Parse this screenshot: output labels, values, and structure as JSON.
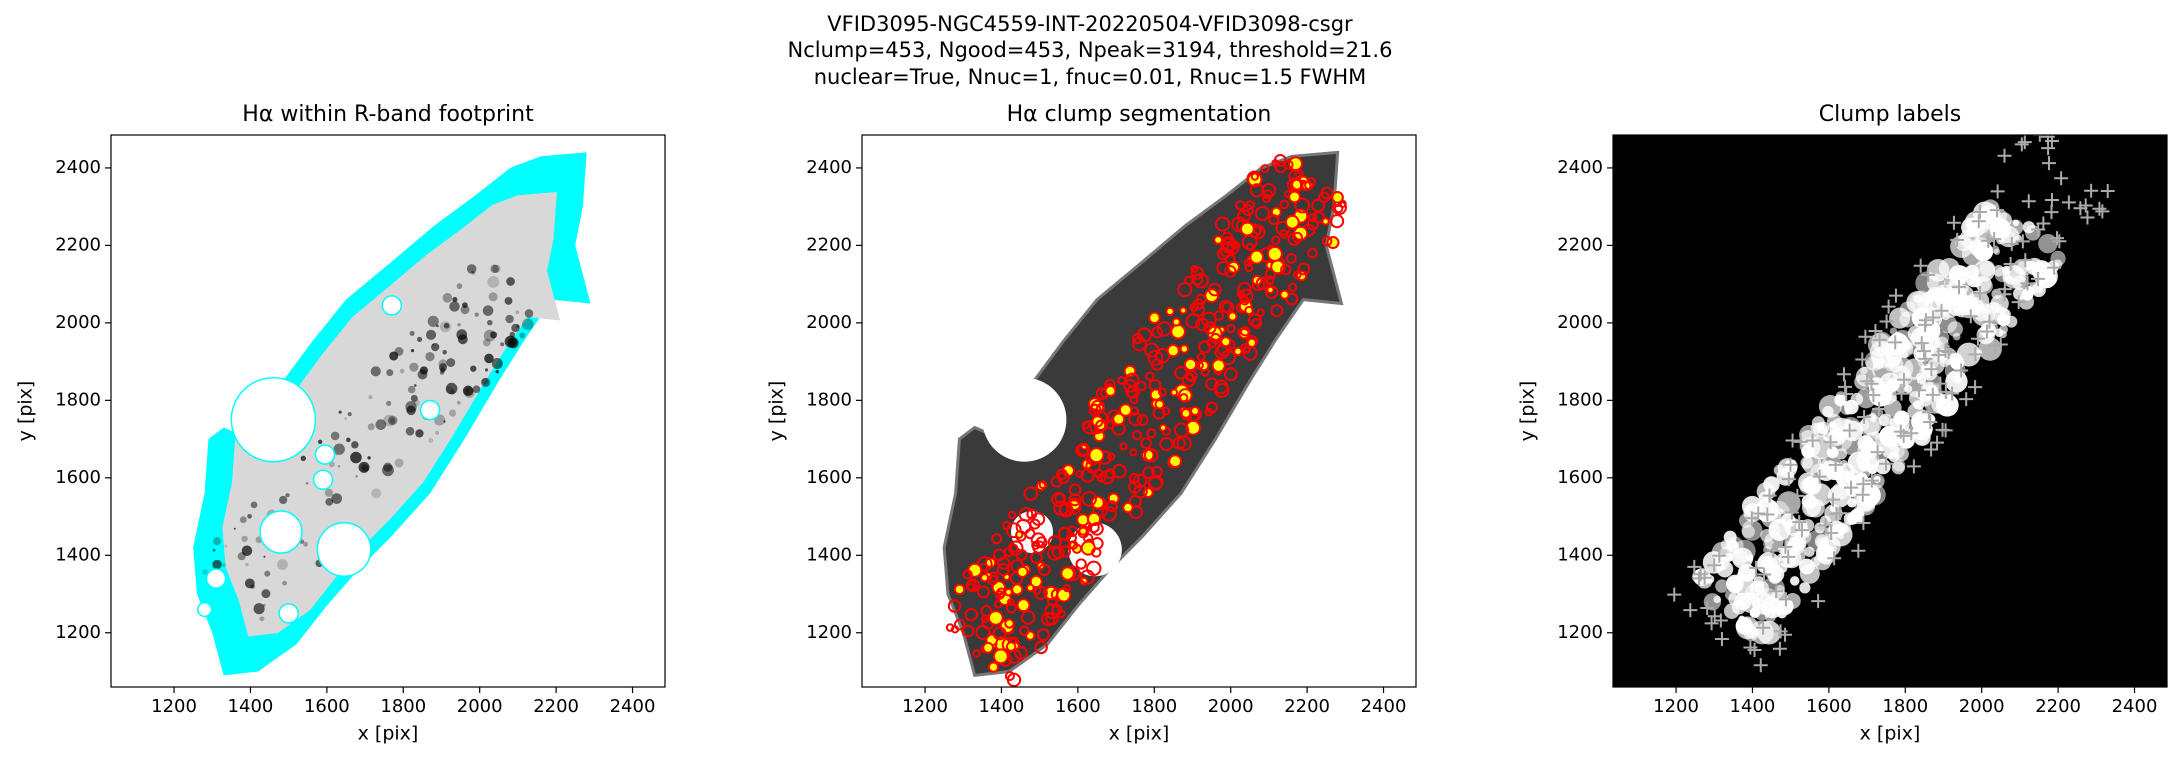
{
  "suptitle": [
    "VFID3095-NGC4559-INT-20220504-VFID3098-csgr",
    "Nclump=453, Ngood=453, Npeak=3194, threshold=21.6",
    "nuclear=True, Nnuc=1, fnuc=0.01, Rnuc=1.5 FWHM"
  ],
  "chart_data": [
    {
      "type": "image",
      "style": "footprint",
      "title": "Hα within R-band footprint",
      "xlabel": "x [pix]",
      "ylabel": "y [pix]",
      "xlim": [
        1035,
        2485
      ],
      "ylim": [
        1060,
        2485
      ],
      "xticks": [
        1200,
        1400,
        1600,
        1800,
        2000,
        2200,
        2400
      ],
      "yticks": [
        1200,
        1400,
        1600,
        1800,
        2000,
        2200,
        2400
      ]
    },
    {
      "type": "image",
      "style": "segmentation",
      "title": "Hα clump segmentation",
      "xlabel": "x [pix]",
      "ylabel": "y [pix]",
      "xlim": [
        1035,
        2485
      ],
      "ylim": [
        1060,
        2485
      ],
      "xticks": [
        1200,
        1400,
        1600,
        1800,
        2000,
        2200,
        2400
      ],
      "yticks": [
        1200,
        1400,
        1600,
        1800,
        2000,
        2200,
        2400
      ]
    },
    {
      "type": "image",
      "style": "labels",
      "title": "Clump labels",
      "xlabel": "x [pix]",
      "ylabel": "y [pix]",
      "xlim": [
        1035,
        2485
      ],
      "ylim": [
        1060,
        2485
      ],
      "xticks": [
        1200,
        1400,
        1600,
        1800,
        2000,
        2200,
        2400
      ],
      "yticks": [
        1200,
        1400,
        1600,
        1800,
        2000,
        2200,
        2400
      ]
    }
  ]
}
